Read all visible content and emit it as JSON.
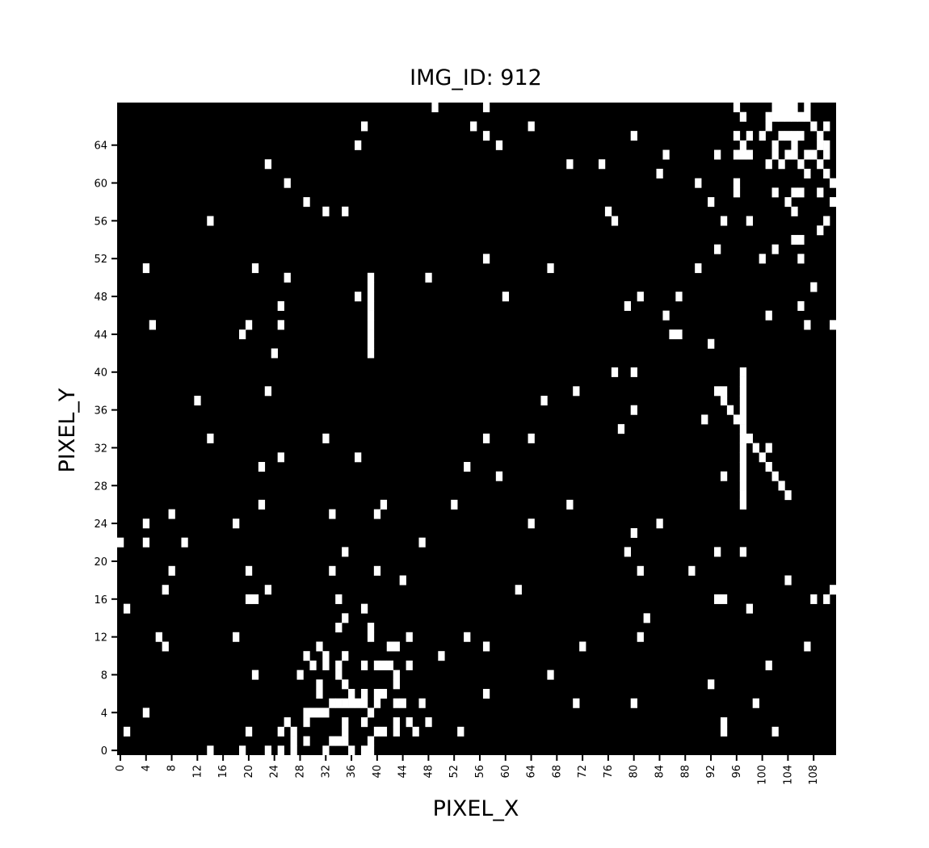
{
  "chart_data": {
    "type": "heatmap",
    "title": "IMG_ID: 912",
    "xlabel": "PIXEL_X",
    "ylabel": "PIXEL_Y",
    "xlim": [
      0,
      112
    ],
    "ylim": [
      0,
      69
    ],
    "grid": false,
    "legend": "none",
    "colormap": {
      "0": "#000000",
      "1": "#ffffff"
    },
    "x_ticks": [
      "0",
      "4",
      "8",
      "12",
      "16",
      "20",
      "24",
      "28",
      "32",
      "36",
      "40",
      "44",
      "48",
      "52",
      "56",
      "60",
      "64",
      "68",
      "72",
      "76",
      "80",
      "84",
      "88",
      "92",
      "96",
      "100",
      "104",
      "108"
    ],
    "y_ticks": [
      "0",
      "4",
      "8",
      "12",
      "16",
      "20",
      "24",
      "28",
      "32",
      "36",
      "40",
      "44",
      "48",
      "52",
      "56",
      "60",
      "64"
    ],
    "white_pixels": [
      [
        49,
        68
      ],
      [
        57,
        68
      ],
      [
        96,
        68
      ],
      [
        102,
        68
      ],
      [
        103,
        68
      ],
      [
        104,
        68
      ],
      [
        105,
        68
      ],
      [
        107,
        68
      ],
      [
        97,
        67
      ],
      [
        101,
        67
      ],
      [
        102,
        67
      ],
      [
        103,
        67
      ],
      [
        104,
        67
      ],
      [
        105,
        67
      ],
      [
        106,
        67
      ],
      [
        107,
        67
      ],
      [
        38,
        66
      ],
      [
        55,
        66
      ],
      [
        64,
        66
      ],
      [
        101,
        66
      ],
      [
        108,
        66
      ],
      [
        110,
        66
      ],
      [
        57,
        65
      ],
      [
        80,
        65
      ],
      [
        96,
        65
      ],
      [
        98,
        65
      ],
      [
        100,
        65
      ],
      [
        103,
        65
      ],
      [
        104,
        65
      ],
      [
        105,
        65
      ],
      [
        106,
        65
      ],
      [
        109,
        65
      ],
      [
        37,
        64
      ],
      [
        59,
        64
      ],
      [
        97,
        64
      ],
      [
        102,
        64
      ],
      [
        105,
        64
      ],
      [
        109,
        64
      ],
      [
        110,
        64
      ],
      [
        85,
        63
      ],
      [
        93,
        63
      ],
      [
        96,
        63
      ],
      [
        97,
        63
      ],
      [
        98,
        63
      ],
      [
        102,
        63
      ],
      [
        104,
        63
      ],
      [
        105,
        63
      ],
      [
        107,
        63
      ],
      [
        108,
        63
      ],
      [
        110,
        63
      ],
      [
        23,
        62
      ],
      [
        70,
        62
      ],
      [
        75,
        62
      ],
      [
        101,
        62
      ],
      [
        103,
        62
      ],
      [
        106,
        62
      ],
      [
        109,
        62
      ],
      [
        84,
        61
      ],
      [
        107,
        61
      ],
      [
        110,
        61
      ],
      [
        26,
        60
      ],
      [
        90,
        60
      ],
      [
        96,
        60
      ],
      [
        111,
        60
      ],
      [
        96,
        59
      ],
      [
        102,
        59
      ],
      [
        105,
        59
      ],
      [
        106,
        59
      ],
      [
        109,
        59
      ],
      [
        29,
        58
      ],
      [
        92,
        58
      ],
      [
        104,
        58
      ],
      [
        111,
        58
      ],
      [
        32,
        57
      ],
      [
        35,
        57
      ],
      [
        76,
        57
      ],
      [
        105,
        57
      ],
      [
        14,
        56
      ],
      [
        77,
        56
      ],
      [
        94,
        56
      ],
      [
        98,
        56
      ],
      [
        110,
        56
      ],
      [
        109,
        55
      ],
      [
        105,
        54
      ],
      [
        106,
        54
      ],
      [
        93,
        53
      ],
      [
        102,
        53
      ],
      [
        57,
        52
      ],
      [
        100,
        52
      ],
      [
        106,
        52
      ],
      [
        4,
        51
      ],
      [
        21,
        51
      ],
      [
        67,
        51
      ],
      [
        90,
        51
      ],
      [
        26,
        50
      ],
      [
        39,
        50
      ],
      [
        48,
        50
      ],
      [
        39,
        49
      ],
      [
        108,
        49
      ],
      [
        37,
        48
      ],
      [
        39,
        48
      ],
      [
        60,
        48
      ],
      [
        81,
        48
      ],
      [
        87,
        48
      ],
      [
        25,
        47
      ],
      [
        39,
        47
      ],
      [
        79,
        47
      ],
      [
        106,
        47
      ],
      [
        39,
        46
      ],
      [
        85,
        46
      ],
      [
        101,
        46
      ],
      [
        5,
        45
      ],
      [
        20,
        45
      ],
      [
        25,
        45
      ],
      [
        39,
        45
      ],
      [
        107,
        45
      ],
      [
        111,
        45
      ],
      [
        19,
        44
      ],
      [
        39,
        44
      ],
      [
        86,
        44
      ],
      [
        87,
        44
      ],
      [
        39,
        43
      ],
      [
        92,
        43
      ],
      [
        24,
        42
      ],
      [
        39,
        42
      ],
      [
        77,
        40
      ],
      [
        80,
        40
      ],
      [
        97,
        40
      ],
      [
        97,
        39
      ],
      [
        23,
        38
      ],
      [
        71,
        38
      ],
      [
        93,
        38
      ],
      [
        94,
        38
      ],
      [
        97,
        38
      ],
      [
        12,
        37
      ],
      [
        66,
        37
      ],
      [
        94,
        37
      ],
      [
        97,
        37
      ],
      [
        80,
        36
      ],
      [
        95,
        36
      ],
      [
        97,
        36
      ],
      [
        91,
        35
      ],
      [
        96,
        35
      ],
      [
        97,
        35
      ],
      [
        78,
        34
      ],
      [
        97,
        34
      ],
      [
        14,
        33
      ],
      [
        32,
        33
      ],
      [
        57,
        33
      ],
      [
        64,
        33
      ],
      [
        97,
        33
      ],
      [
        98,
        33
      ],
      [
        97,
        32
      ],
      [
        99,
        32
      ],
      [
        101,
        32
      ],
      [
        25,
        31
      ],
      [
        37,
        31
      ],
      [
        97,
        31
      ],
      [
        100,
        31
      ],
      [
        22,
        30
      ],
      [
        54,
        30
      ],
      [
        97,
        30
      ],
      [
        101,
        30
      ],
      [
        59,
        29
      ],
      [
        94,
        29
      ],
      [
        97,
        29
      ],
      [
        102,
        29
      ],
      [
        97,
        28
      ],
      [
        103,
        28
      ],
      [
        97,
        27
      ],
      [
        104,
        27
      ],
      [
        22,
        26
      ],
      [
        41,
        26
      ],
      [
        52,
        26
      ],
      [
        70,
        26
      ],
      [
        97,
        26
      ],
      [
        8,
        25
      ],
      [
        33,
        25
      ],
      [
        40,
        25
      ],
      [
        4,
        24
      ],
      [
        18,
        24
      ],
      [
        64,
        24
      ],
      [
        84,
        24
      ],
      [
        80,
        23
      ],
      [
        0,
        22
      ],
      [
        4,
        22
      ],
      [
        10,
        22
      ],
      [
        47,
        22
      ],
      [
        35,
        21
      ],
      [
        79,
        21
      ],
      [
        93,
        21
      ],
      [
        97,
        21
      ],
      [
        8,
        19
      ],
      [
        20,
        19
      ],
      [
        33,
        19
      ],
      [
        40,
        19
      ],
      [
        81,
        19
      ],
      [
        89,
        19
      ],
      [
        44,
        18
      ],
      [
        104,
        18
      ],
      [
        7,
        17
      ],
      [
        23,
        17
      ],
      [
        62,
        17
      ],
      [
        111,
        17
      ],
      [
        20,
        16
      ],
      [
        21,
        16
      ],
      [
        34,
        16
      ],
      [
        93,
        16
      ],
      [
        94,
        16
      ],
      [
        108,
        16
      ],
      [
        110,
        16
      ],
      [
        1,
        15
      ],
      [
        38,
        15
      ],
      [
        98,
        15
      ],
      [
        35,
        14
      ],
      [
        82,
        14
      ],
      [
        34,
        13
      ],
      [
        39,
        13
      ],
      [
        6,
        12
      ],
      [
        18,
        12
      ],
      [
        39,
        12
      ],
      [
        45,
        12
      ],
      [
        54,
        12
      ],
      [
        81,
        12
      ],
      [
        7,
        11
      ],
      [
        31,
        11
      ],
      [
        42,
        11
      ],
      [
        43,
        11
      ],
      [
        57,
        11
      ],
      [
        72,
        11
      ],
      [
        107,
        11
      ],
      [
        29,
        10
      ],
      [
        32,
        10
      ],
      [
        35,
        10
      ],
      [
        50,
        10
      ],
      [
        30,
        9
      ],
      [
        32,
        9
      ],
      [
        34,
        9
      ],
      [
        38,
        9
      ],
      [
        40,
        9
      ],
      [
        41,
        9
      ],
      [
        42,
        9
      ],
      [
        45,
        9
      ],
      [
        101,
        9
      ],
      [
        21,
        8
      ],
      [
        28,
        8
      ],
      [
        34,
        8
      ],
      [
        43,
        8
      ],
      [
        67,
        8
      ],
      [
        31,
        7
      ],
      [
        35,
        7
      ],
      [
        43,
        7
      ],
      [
        92,
        7
      ],
      [
        31,
        6
      ],
      [
        36,
        6
      ],
      [
        38,
        6
      ],
      [
        40,
        6
      ],
      [
        41,
        6
      ],
      [
        57,
        6
      ],
      [
        33,
        5
      ],
      [
        34,
        5
      ],
      [
        35,
        5
      ],
      [
        36,
        5
      ],
      [
        37,
        5
      ],
      [
        38,
        5
      ],
      [
        40,
        5
      ],
      [
        43,
        5
      ],
      [
        44,
        5
      ],
      [
        47,
        5
      ],
      [
        71,
        5
      ],
      [
        80,
        5
      ],
      [
        99,
        5
      ],
      [
        4,
        4
      ],
      [
        29,
        4
      ],
      [
        30,
        4
      ],
      [
        31,
        4
      ],
      [
        32,
        4
      ],
      [
        39,
        4
      ],
      [
        26,
        3
      ],
      [
        29,
        3
      ],
      [
        35,
        3
      ],
      [
        38,
        3
      ],
      [
        43,
        3
      ],
      [
        45,
        3
      ],
      [
        48,
        3
      ],
      [
        94,
        3
      ],
      [
        1,
        2
      ],
      [
        20,
        2
      ],
      [
        25,
        2
      ],
      [
        27,
        2
      ],
      [
        35,
        2
      ],
      [
        40,
        2
      ],
      [
        41,
        2
      ],
      [
        43,
        2
      ],
      [
        46,
        2
      ],
      [
        53,
        2
      ],
      [
        94,
        2
      ],
      [
        102,
        2
      ],
      [
        27,
        1
      ],
      [
        29,
        1
      ],
      [
        33,
        1
      ],
      [
        34,
        1
      ],
      [
        35,
        1
      ],
      [
        39,
        1
      ],
      [
        14,
        0
      ],
      [
        19,
        0
      ],
      [
        23,
        0
      ],
      [
        25,
        0
      ],
      [
        27,
        0
      ],
      [
        32,
        0
      ],
      [
        36,
        0
      ],
      [
        38,
        0
      ],
      [
        39,
        0
      ]
    ]
  }
}
